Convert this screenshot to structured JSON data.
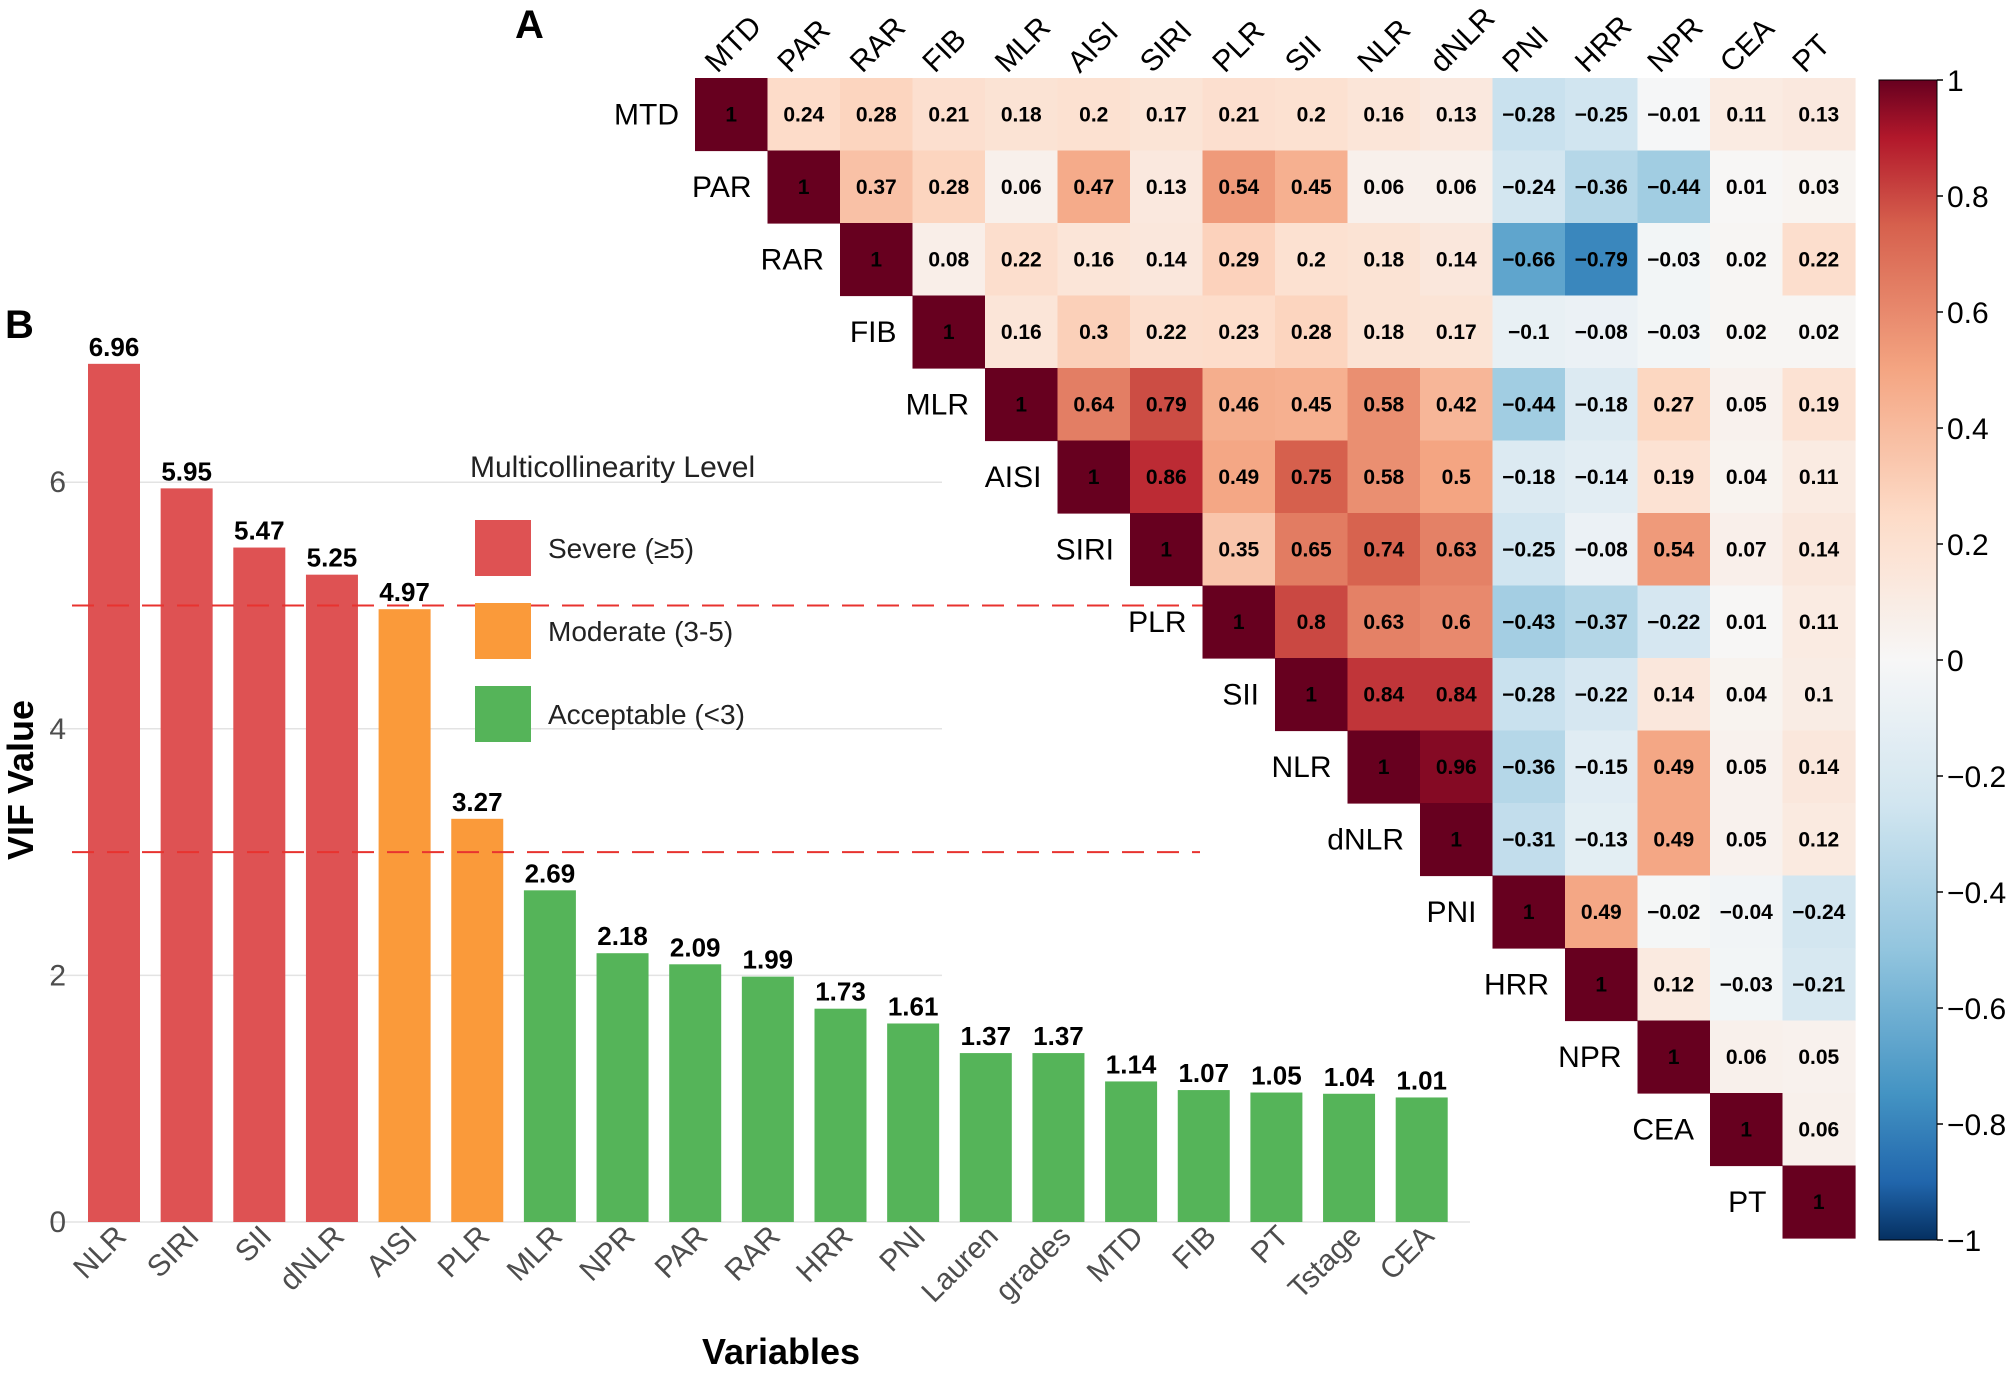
{
  "panel_a_label": "A",
  "panel_b_label": "B",
  "colors": {
    "severe": "#de5253",
    "moderate": "#fa9a3a",
    "acceptable": "#55b459",
    "threshold_line": "#e8332f",
    "heat_neg": "#053061",
    "heat_mid": "#f7f7f7",
    "heat_pos": "#67001f"
  },
  "chart_data": [
    {
      "type": "heatmap",
      "id": "correlation",
      "variables": [
        "MTD",
        "PAR",
        "RAR",
        "FIB",
        "MLR",
        "AISI",
        "SIRI",
        "PLR",
        "SII",
        "NLR",
        "dNLR",
        "PNI",
        "HRR",
        "NPR",
        "CEA",
        "PT"
      ],
      "shape": "upper-triangle",
      "values": [
        [
          1,
          0.24,
          0.28,
          0.21,
          0.18,
          0.2,
          0.17,
          0.21,
          0.2,
          0.16,
          0.13,
          -0.28,
          -0.25,
          -0.01,
          0.11,
          0.13
        ],
        [
          1,
          0.37,
          0.28,
          0.06,
          0.47,
          0.13,
          0.54,
          0.45,
          0.06,
          0.06,
          -0.24,
          -0.36,
          -0.44,
          0.01,
          0.03
        ],
        [
          1,
          0.08,
          0.22,
          0.16,
          0.14,
          0.29,
          0.2,
          0.18,
          0.14,
          -0.66,
          -0.79,
          -0.03,
          0.02,
          0.22
        ],
        [
          1,
          0.16,
          0.3,
          0.22,
          0.23,
          0.28,
          0.18,
          0.17,
          -0.1,
          -0.08,
          -0.03,
          0.02,
          0.02
        ],
        [
          1,
          0.64,
          0.79,
          0.46,
          0.45,
          0.58,
          0.42,
          -0.44,
          -0.18,
          0.27,
          0.05,
          0.19
        ],
        [
          1,
          0.86,
          0.49,
          0.75,
          0.58,
          0.5,
          -0.18,
          -0.14,
          0.19,
          0.04,
          0.11
        ],
        [
          1,
          0.35,
          0.65,
          0.74,
          0.63,
          -0.25,
          -0.08,
          0.54,
          0.07,
          0.14
        ],
        [
          1,
          0.8,
          0.63,
          0.6,
          -0.43,
          -0.37,
          -0.22,
          0.01,
          0.11
        ],
        [
          1,
          0.84,
          0.84,
          -0.28,
          -0.22,
          0.14,
          0.04,
          0.1
        ],
        [
          1,
          0.96,
          -0.36,
          -0.15,
          0.49,
          0.05,
          0.14
        ],
        [
          1,
          -0.31,
          -0.13,
          0.49,
          0.05,
          0.12
        ],
        [
          1,
          0.49,
          -0.02,
          -0.04,
          -0.24
        ],
        [
          1,
          0.12,
          -0.03,
          -0.21
        ],
        [
          1,
          0.06,
          0.05
        ],
        [
          1,
          0.06
        ],
        [
          1
        ]
      ],
      "colorbar": {
        "range": [
          -1,
          1
        ],
        "ticks": [
          "1",
          "0.8",
          "0.6",
          "0.4",
          "0.2",
          "0",
          "−0.2",
          "−0.4",
          "−0.6",
          "−0.8",
          "−1"
        ],
        "tick_values": [
          1,
          0.8,
          0.6,
          0.4,
          0.2,
          0,
          -0.2,
          -0.4,
          -0.6,
          -0.8,
          -1
        ]
      }
    },
    {
      "type": "bar",
      "id": "vif",
      "categories": [
        "NLR",
        "SIRI",
        "SII",
        "dNLR",
        "AISI",
        "PLR",
        "MLR",
        "NPR",
        "PAR",
        "RAR",
        "HRR",
        "PNI",
        "Lauren",
        "grades",
        "MTD",
        "FIB",
        "PT",
        "Tstage",
        "CEA"
      ],
      "values": [
        6.96,
        5.95,
        5.47,
        5.25,
        4.97,
        3.27,
        2.69,
        2.18,
        2.09,
        1.99,
        1.73,
        1.61,
        1.37,
        1.37,
        1.14,
        1.07,
        1.05,
        1.04,
        1.01
      ],
      "value_labels": [
        "6.96",
        "5.95",
        "5.47",
        "5.25",
        "4.97",
        "3.27",
        "2.69",
        "2.18",
        "2.09",
        "1.99",
        "1.73",
        "1.61",
        "1.37",
        "1.37",
        "1.14",
        "1.07",
        "1.05",
        "1.04",
        "1.01"
      ],
      "levels": [
        "severe",
        "severe",
        "severe",
        "severe",
        "moderate",
        "moderate",
        "acceptable",
        "acceptable",
        "acceptable",
        "acceptable",
        "acceptable",
        "acceptable",
        "acceptable",
        "acceptable",
        "acceptable",
        "acceptable",
        "acceptable",
        "acceptable",
        "acceptable"
      ],
      "xlabel": "Variables",
      "ylabel": "VIF Value",
      "ylim": [
        0,
        7.1
      ],
      "yticks": [
        0,
        2,
        4,
        6
      ],
      "ytick_labels": [
        "0",
        "2",
        "4",
        "6"
      ],
      "threshold_lines": [
        5,
        3
      ],
      "grid": true,
      "legend": {
        "title": "Multicollinearity Level",
        "placement": "upper-middle",
        "items": [
          {
            "key": "severe",
            "label": "Severe (≥5)"
          },
          {
            "key": "moderate",
            "label": "Moderate (3-5)"
          },
          {
            "key": "acceptable",
            "label": "Acceptable (<3)"
          }
        ]
      }
    }
  ]
}
